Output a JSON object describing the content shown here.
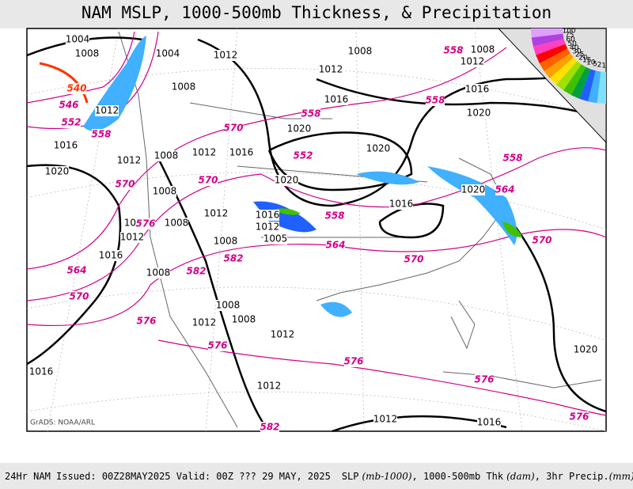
{
  "header": {
    "title": "NAM MSLP, 1000-500mb Thickness, & Precipitation"
  },
  "footer": {
    "run": "24Hr NAM Issued: 00Z28MAY2025 Valid: 00Z ??? 29 MAY, 2025",
    "slp": "SLP",
    "slp_unit": "(mb-1000)",
    "thk": ", 1000-500mb Thk",
    "thk_unit": "(dam)",
    "precip": ", 3hr Precip.",
    "precip_unit": "(mm)"
  },
  "credit": "GrADS: NOAA/ARL",
  "legend": [
    {
      "label": 100,
      "color": "#e0a0ff"
    },
    {
      "label": 75,
      "color": "#b040e0"
    },
    {
      "label": 60,
      "color": "#ff40c0"
    },
    {
      "label": 50,
      "color": "#ff0000"
    },
    {
      "label": 40,
      "color": "#ff6000"
    },
    {
      "label": 30,
      "color": "#ffa000"
    },
    {
      "label": 25,
      "color": "#ffe000"
    },
    {
      "label": 20,
      "color": "#a0e000"
    },
    {
      "label": 15,
      "color": "#40c000"
    },
    {
      "label": 10,
      "color": "#00a040"
    },
    {
      "label": 5,
      "color": "#2060ff"
    },
    {
      "label": 2,
      "color": "#40b0ff"
    },
    {
      "label": 1,
      "color": "#80e0ff"
    }
  ],
  "isobar_labels": [
    "1004",
    "1008",
    "1004",
    "1012",
    "1008",
    "1012",
    "1008",
    "1012",
    "1008",
    "1012",
    "1016",
    "1016",
    "1020",
    "1016",
    "1020",
    "1020",
    "1020",
    "1012",
    "1008",
    "1012",
    "1016",
    "1020",
    "1008",
    "1016",
    "1012",
    "1016",
    "1012",
    "1008",
    "1008",
    "1012",
    "1005",
    "1008",
    "1016",
    "1008",
    "1008",
    "1008",
    "1012",
    "1012",
    "1016",
    "1012",
    "1012",
    "1016",
    "1020",
    "1020"
  ],
  "thickness_labels": [
    "540",
    "546",
    "552",
    "558",
    "558",
    "558",
    "558",
    "570",
    "552",
    "570",
    "558",
    "564",
    "570",
    "570",
    "558",
    "564",
    "576",
    "582",
    "582",
    "564",
    "570",
    "576",
    "576",
    "576",
    "576",
    "582",
    "570",
    "576"
  ]
}
